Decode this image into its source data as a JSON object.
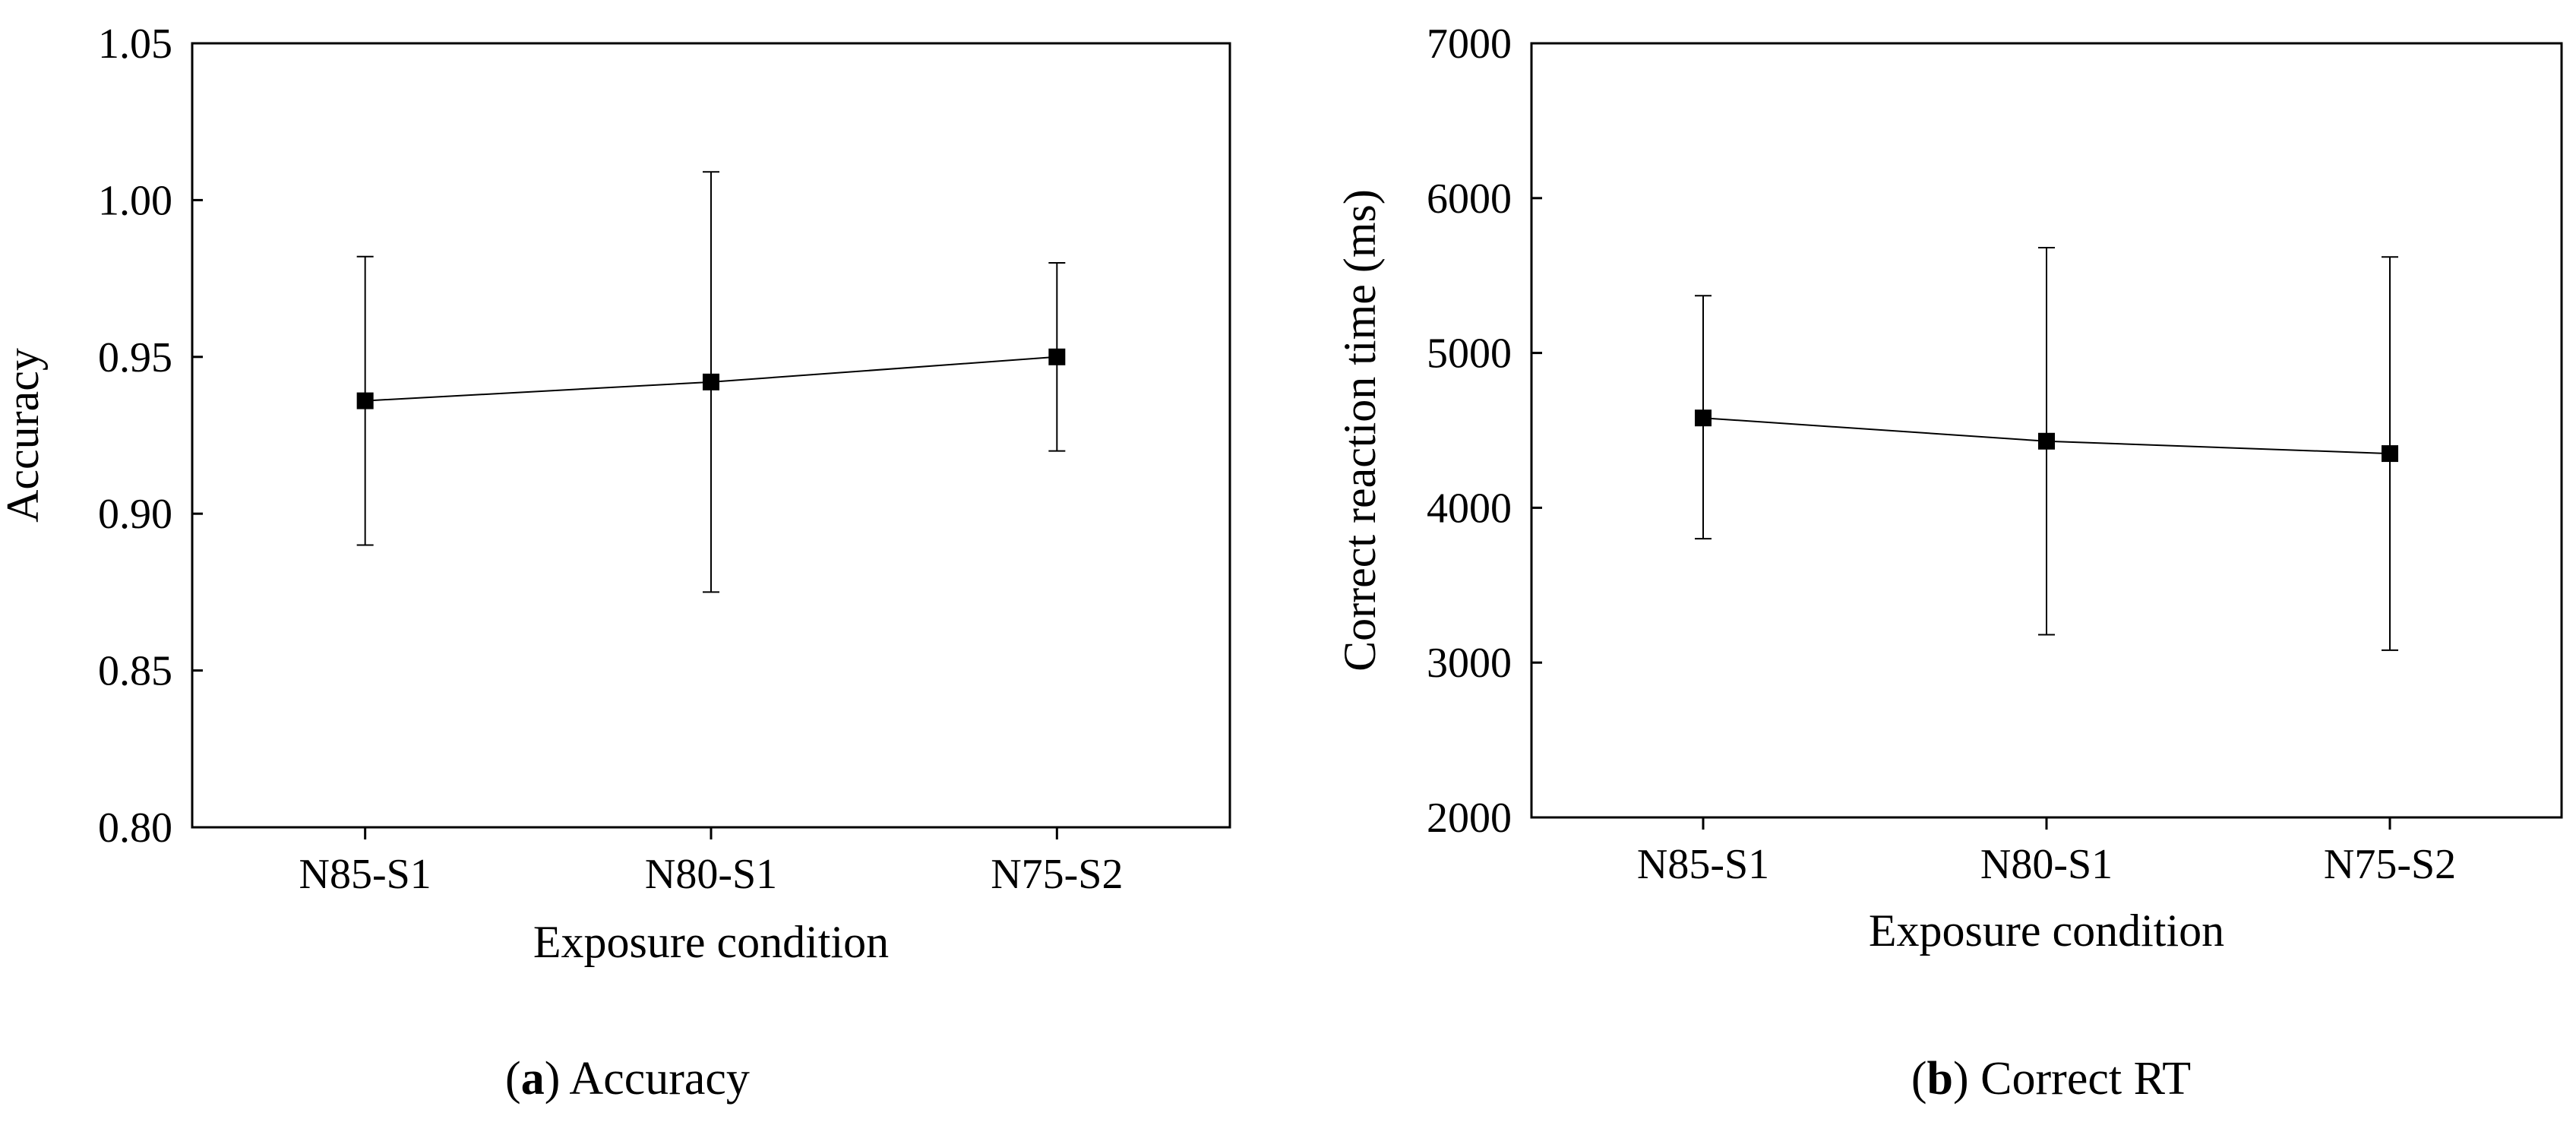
{
  "chart_data": [
    {
      "type": "line",
      "title": "",
      "caption_letter": "a",
      "caption_text": " Accuracy",
      "xlabel": "Exposure condition",
      "ylabel": "Accuracy",
      "categories": [
        "N85-S1",
        "N80-S1",
        "N75-S2"
      ],
      "series": [
        {
          "name": "Accuracy",
          "values": [
            0.936,
            0.942,
            0.95
          ],
          "error_low": [
            0.89,
            0.875,
            0.92
          ],
          "error_high": [
            0.982,
            1.009,
            0.98
          ]
        }
      ],
      "ylim": [
        0.8,
        1.05
      ],
      "yticks": [
        "0.80",
        "0.85",
        "0.90",
        "0.95",
        "1.00",
        "1.05"
      ],
      "grid": false,
      "marker": "square"
    },
    {
      "type": "line",
      "title": "",
      "caption_letter": "b",
      "caption_text": " Correct RT",
      "xlabel": "Exposure condition",
      "ylabel": "Correct reaction time (ms)",
      "categories": [
        "N85-S1",
        "N80-S1",
        "N75-S2"
      ],
      "series": [
        {
          "name": "Correct RT",
          "values": [
            4580,
            4430,
            4350
          ],
          "error_low": [
            3800,
            3180,
            3080
          ],
          "error_high": [
            5370,
            5680,
            5620
          ]
        }
      ],
      "ylim": [
        2000,
        7000
      ],
      "yticks": [
        "2000",
        "3000",
        "4000",
        "5000",
        "6000",
        "7000"
      ],
      "grid": false,
      "marker": "square"
    }
  ],
  "colors": {
    "line": "#000000",
    "marker": "#000000",
    "errorbar": "#000000",
    "background": "#ffffff"
  }
}
